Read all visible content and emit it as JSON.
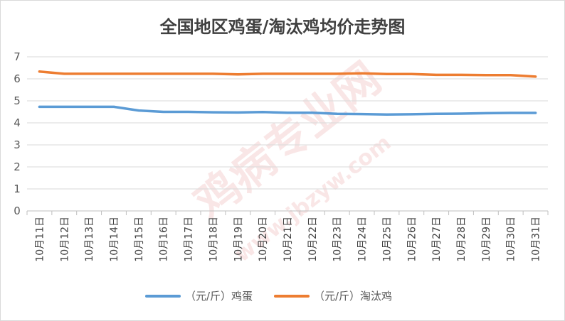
{
  "chart_data": {
    "type": "line",
    "title": "全国地区鸡蛋/淘汰鸡均价走势图",
    "xlabel": "",
    "ylabel": "",
    "ylim": [
      0,
      7
    ],
    "yticks": [
      0,
      1,
      2,
      3,
      4,
      5,
      6,
      7
    ],
    "grid": true,
    "legend_position": "bottom",
    "categories": [
      "10月11日",
      "10月12日",
      "10月13日",
      "10月14日",
      "10月15日",
      "10月16日",
      "10月17日",
      "10月18日",
      "10月19日",
      "10月20日",
      "10月21日",
      "10月22日",
      "10月23日",
      "10月24日",
      "10月25日",
      "10月26日",
      "10月27日",
      "10月28日",
      "10月29日",
      "10月30日",
      "10月31日"
    ],
    "series": [
      {
        "name": "（元/斤）鸡蛋",
        "color": "#5b9bd5",
        "values": [
          4.73,
          4.73,
          4.73,
          4.73,
          4.56,
          4.5,
          4.5,
          4.48,
          4.47,
          4.49,
          4.46,
          4.46,
          4.41,
          4.4,
          4.38,
          4.39,
          4.41,
          4.42,
          4.44,
          4.45,
          4.45
        ]
      },
      {
        "name": "（元/斤）淘汰鸡",
        "color": "#ed7d31",
        "values": [
          6.33,
          6.23,
          6.23,
          6.23,
          6.23,
          6.23,
          6.23,
          6.23,
          6.2,
          6.23,
          6.23,
          6.23,
          6.23,
          6.25,
          6.22,
          6.22,
          6.18,
          6.18,
          6.17,
          6.17,
          6.1
        ]
      }
    ]
  },
  "watermark": {
    "main": "鸡病专业网",
    "url": "www.jbzyw.com"
  },
  "colors": {
    "grid": "#d9d9d9",
    "axis": "#bfbfbf"
  }
}
